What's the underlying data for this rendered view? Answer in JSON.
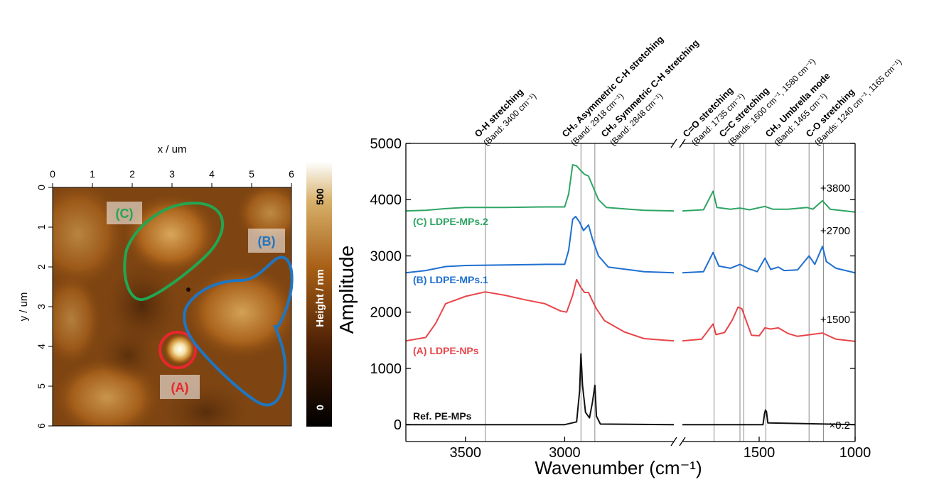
{
  "afm": {
    "x_label": "x / um",
    "y_label": "y / um",
    "x_ticks": [
      "0",
      "1",
      "2",
      "3",
      "4",
      "5",
      "6"
    ],
    "y_ticks": [
      "0",
      "1",
      "2",
      "3",
      "4",
      "5",
      "6"
    ],
    "colorbar_label": "Height / nm",
    "colorbar_ticks": [
      "500",
      "0"
    ],
    "regions": [
      {
        "label": "(A)",
        "color": "#e8262b"
      },
      {
        "label": "(B)",
        "color": "#1f76c2"
      },
      {
        "label": "(C)",
        "color": "#23a651"
      }
    ]
  },
  "chart_data": {
    "type": "line",
    "xlabel": "Wavenumber (cm⁻¹)",
    "ylabel": "Amplitude",
    "ylim": [
      -300,
      5000
    ],
    "x_axis_broken": true,
    "x_segments": [
      [
        3800,
        2450
      ],
      [
        1900,
        1000
      ]
    ],
    "x_ticks": [
      "3500",
      "3000",
      "1500",
      "1000"
    ],
    "y_ticks": [
      "0",
      "1000",
      "2000",
      "3000",
      "4000",
      "5000"
    ],
    "series": [
      {
        "name": "Ref. PE-MPs",
        "offset_label": "×0.2",
        "color": "#111111",
        "points": [
          [
            3800,
            0
          ],
          [
            3000,
            0
          ],
          [
            2940,
            50
          ],
          [
            2925,
            600
          ],
          [
            2918,
            1260
          ],
          [
            2910,
            700
          ],
          [
            2895,
            220
          ],
          [
            2875,
            120
          ],
          [
            2860,
            400
          ],
          [
            2848,
            700
          ],
          [
            2840,
            150
          ],
          [
            2820,
            10
          ],
          [
            2450,
            0
          ],
          [
            1900,
            0
          ],
          [
            1480,
            0
          ],
          [
            1472,
            200
          ],
          [
            1467,
            260
          ],
          [
            1462,
            230
          ],
          [
            1455,
            30
          ],
          [
            1000,
            0
          ]
        ]
      },
      {
        "name": "(A) LDPE-NPs",
        "offset_label": "+1500",
        "color": "#e8454a",
        "points": [
          [
            3800,
            1490
          ],
          [
            3700,
            1550
          ],
          [
            3650,
            1800
          ],
          [
            3600,
            2150
          ],
          [
            3500,
            2280
          ],
          [
            3400,
            2360
          ],
          [
            3300,
            2300
          ],
          [
            3200,
            2220
          ],
          [
            3100,
            2150
          ],
          [
            3020,
            2020
          ],
          [
            2990,
            2000
          ],
          [
            2960,
            2300
          ],
          [
            2940,
            2580
          ],
          [
            2920,
            2450
          ],
          [
            2900,
            2350
          ],
          [
            2880,
            2350
          ],
          [
            2860,
            2200
          ],
          [
            2840,
            2060
          ],
          [
            2800,
            1850
          ],
          [
            2700,
            1650
          ],
          [
            2600,
            1530
          ],
          [
            2450,
            1490
          ],
          [
            1900,
            1490
          ],
          [
            1800,
            1520
          ],
          [
            1740,
            1790
          ],
          [
            1725,
            1600
          ],
          [
            1680,
            1640
          ],
          [
            1640,
            1860
          ],
          [
            1610,
            2090
          ],
          [
            1590,
            2060
          ],
          [
            1570,
            1870
          ],
          [
            1540,
            1590
          ],
          [
            1500,
            1580
          ],
          [
            1470,
            1720
          ],
          [
            1440,
            1700
          ],
          [
            1400,
            1720
          ],
          [
            1350,
            1620
          ],
          [
            1300,
            1570
          ],
          [
            1170,
            1630
          ],
          [
            1100,
            1520
          ],
          [
            1000,
            1480
          ]
        ]
      },
      {
        "name": "(B) LDPE-MPs.1",
        "offset_label": "+2700",
        "color": "#1f6fd0",
        "points": [
          [
            3800,
            2700
          ],
          [
            3700,
            2740
          ],
          [
            3600,
            2810
          ],
          [
            3500,
            2830
          ],
          [
            3300,
            2840
          ],
          [
            3100,
            2850
          ],
          [
            3000,
            2850
          ],
          [
            2980,
            3100
          ],
          [
            2960,
            3650
          ],
          [
            2945,
            3700
          ],
          [
            2925,
            3600
          ],
          [
            2905,
            3450
          ],
          [
            2880,
            3550
          ],
          [
            2860,
            3300
          ],
          [
            2830,
            3000
          ],
          [
            2780,
            2800
          ],
          [
            2600,
            2720
          ],
          [
            2450,
            2700
          ],
          [
            1900,
            2700
          ],
          [
            1790,
            2720
          ],
          [
            1740,
            3060
          ],
          [
            1710,
            2820
          ],
          [
            1650,
            2780
          ],
          [
            1600,
            2850
          ],
          [
            1560,
            2780
          ],
          [
            1510,
            2720
          ],
          [
            1470,
            2960
          ],
          [
            1440,
            2760
          ],
          [
            1400,
            2800
          ],
          [
            1370,
            2740
          ],
          [
            1300,
            2750
          ],
          [
            1240,
            3000
          ],
          [
            1210,
            2850
          ],
          [
            1170,
            3170
          ],
          [
            1150,
            2900
          ],
          [
            1100,
            2780
          ],
          [
            1000,
            2700
          ]
        ]
      },
      {
        "name": "(C) LDPE-MPs.2",
        "offset_label": "+3800",
        "color": "#2ea565",
        "points": [
          [
            3800,
            3800
          ],
          [
            3700,
            3810
          ],
          [
            3600,
            3840
          ],
          [
            3500,
            3860
          ],
          [
            3300,
            3860
          ],
          [
            3100,
            3870
          ],
          [
            3000,
            3870
          ],
          [
            2980,
            4100
          ],
          [
            2960,
            4620
          ],
          [
            2940,
            4600
          ],
          [
            2920,
            4520
          ],
          [
            2900,
            4450
          ],
          [
            2880,
            4420
          ],
          [
            2860,
            4250
          ],
          [
            2830,
            4000
          ],
          [
            2790,
            3860
          ],
          [
            2600,
            3810
          ],
          [
            2450,
            3800
          ],
          [
            1900,
            3800
          ],
          [
            1790,
            3820
          ],
          [
            1740,
            4150
          ],
          [
            1720,
            3860
          ],
          [
            1650,
            3830
          ],
          [
            1600,
            3850
          ],
          [
            1550,
            3820
          ],
          [
            1470,
            3880
          ],
          [
            1430,
            3830
          ],
          [
            1350,
            3830
          ],
          [
            1250,
            3860
          ],
          [
            1220,
            3830
          ],
          [
            1170,
            3980
          ],
          [
            1130,
            3830
          ],
          [
            1000,
            3780
          ]
        ]
      }
    ],
    "bands": [
      3400,
      2918,
      2848,
      1735,
      1600,
      1580,
      1465,
      1240,
      1165
    ],
    "annotations": [
      {
        "title": "O-H stretching",
        "detail": "(Band: 3400 cm⁻¹)"
      },
      {
        "title": "CH₂ Asymmetric C-H stretching",
        "detail": "(Band: 2918 cm⁻¹)"
      },
      {
        "title": "CH₂ Symmetric C-H stretching",
        "detail": "(Band: 2848 cm⁻¹)"
      },
      {
        "title": "C=O stretching",
        "detail": "(Band: 1735 cm⁻¹)"
      },
      {
        "title": "C=C stretching",
        "detail": "(Bands: 1600 cm⁻¹, 1580 cm⁻¹)"
      },
      {
        "title": "CH₃ Umbrella mode",
        "detail": "(Band: 1465 cm⁻¹)"
      },
      {
        "title": "C-O stretching",
        "detail": "(Bands: 1240 cm⁻¹, 1165 cm⁻¹)"
      }
    ]
  }
}
